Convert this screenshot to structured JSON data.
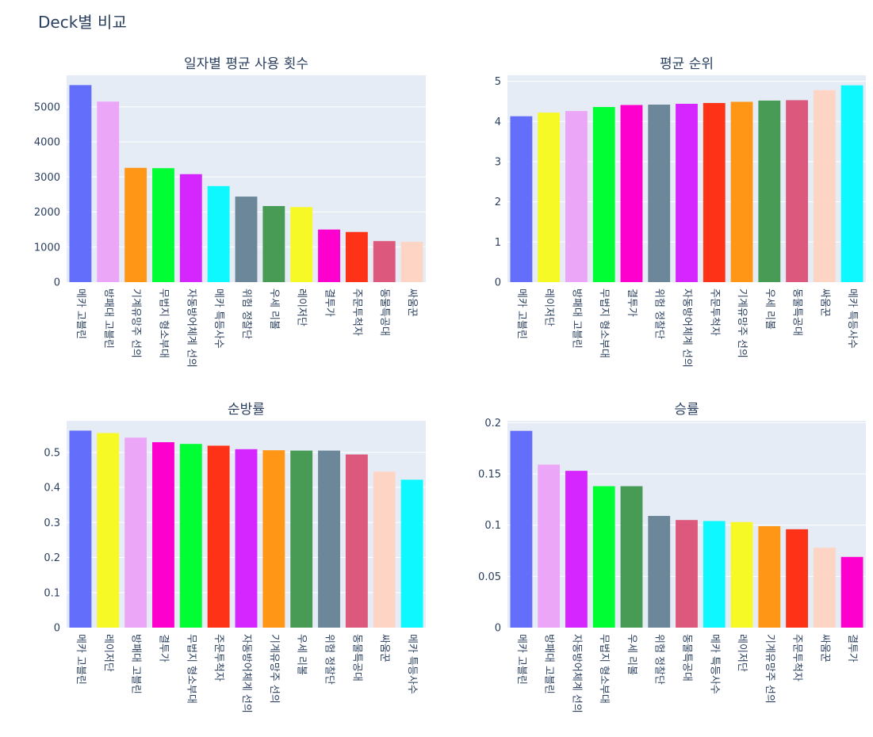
{
  "title": "Deck별 비교",
  "colors": {
    "메카 고블린": "#636EFA",
    "방패대 고블린": "#EBA6F7",
    "기계유망주 선의": "#FF9616",
    "무법지 형소부대": "#00FE35",
    "자동방어체계 선의": "#D626FF",
    "메카 특등사수": "#0DF9FF",
    "위험 정찰단": "#6C8799",
    "우세 리볼": "#479B55",
    "레이저단": "#F6F926",
    "결투가": "#FE00CE",
    "주문투척자": "#FD3216",
    "동물특공대": "#DC587D",
    "싸움꾼": "#FED4C4"
  },
  "chart_data": [
    {
      "type": "bar",
      "title": "일자별 평균 사용 횟수",
      "categories": [
        "메카 고블린",
        "방패대 고블린",
        "기계유망주 선의",
        "무법지 형소부대",
        "자동방어체계 선의",
        "메카 특등사수",
        "위험 정찰단",
        "우세 리볼",
        "레이저단",
        "결투가",
        "주문투척자",
        "동물특공대",
        "싸움꾼"
      ],
      "values": [
        5620,
        5150,
        3260,
        3250,
        3080,
        2740,
        2440,
        2170,
        2140,
        1500,
        1430,
        1170,
        1150
      ],
      "ylim": [
        0,
        5900
      ],
      "yticks": [
        0,
        1000,
        2000,
        3000,
        4000,
        5000
      ],
      "ytick_labels": [
        "0",
        "1000",
        "2000",
        "3000",
        "4000",
        "5000"
      ]
    },
    {
      "type": "bar",
      "title": "평균 순위",
      "categories": [
        "메카 고블린",
        "레이저단",
        "방패대 고블린",
        "무법지 형소부대",
        "결투가",
        "위험 정찰단",
        "자동방어체계 선의",
        "주문투척자",
        "기계유망주 선의",
        "우세 리볼",
        "동물특공대",
        "싸움꾼",
        "메카 특등사수"
      ],
      "values": [
        4.13,
        4.22,
        4.26,
        4.36,
        4.41,
        4.42,
        4.44,
        4.46,
        4.49,
        4.52,
        4.53,
        4.78,
        4.9
      ],
      "ylim": [
        0,
        5.15
      ],
      "yticks": [
        0,
        1,
        2,
        3,
        4,
        5
      ],
      "ytick_labels": [
        "0",
        "1",
        "2",
        "3",
        "4",
        "5"
      ]
    },
    {
      "type": "bar",
      "title": "순방률",
      "categories": [
        "메카 고블린",
        "레이저단",
        "방패대 고블린",
        "결투가",
        "무법지 형소부대",
        "주문투척자",
        "자동방어체계 선의",
        "기계유망주 선의",
        "우세 리볼",
        "위험 정찰단",
        "동물특공대",
        "싸움꾼",
        "메카 특등사수"
      ],
      "values": [
        0.562,
        0.555,
        0.542,
        0.529,
        0.524,
        0.519,
        0.509,
        0.506,
        0.505,
        0.505,
        0.494,
        0.445,
        0.422
      ],
      "ylim": [
        0,
        0.59
      ],
      "yticks": [
        0,
        0.1,
        0.2,
        0.3,
        0.4,
        0.5
      ],
      "ytick_labels": [
        "0",
        "0.1",
        "0.2",
        "0.3",
        "0.4",
        "0.5"
      ]
    },
    {
      "type": "bar",
      "title": "승률",
      "categories": [
        "메카 고블린",
        "방패대 고블린",
        "자동방어체계 선의",
        "무법지 형소부대",
        "우세 리볼",
        "위험 정찰단",
        "동물특공대",
        "메카 특등사수",
        "레이저단",
        "기계유망주 선의",
        "주문투척자",
        "싸움꾼",
        "결투가"
      ],
      "values": [
        0.192,
        0.159,
        0.153,
        0.138,
        0.138,
        0.109,
        0.105,
        0.104,
        0.103,
        0.099,
        0.096,
        0.078,
        0.069
      ],
      "ylim": [
        0,
        0.2018
      ],
      "yticks": [
        0,
        0.05,
        0.1,
        0.15,
        0.2
      ],
      "ytick_labels": [
        "0",
        "0.05",
        "0.1",
        "0.15",
        "0.2"
      ]
    }
  ]
}
